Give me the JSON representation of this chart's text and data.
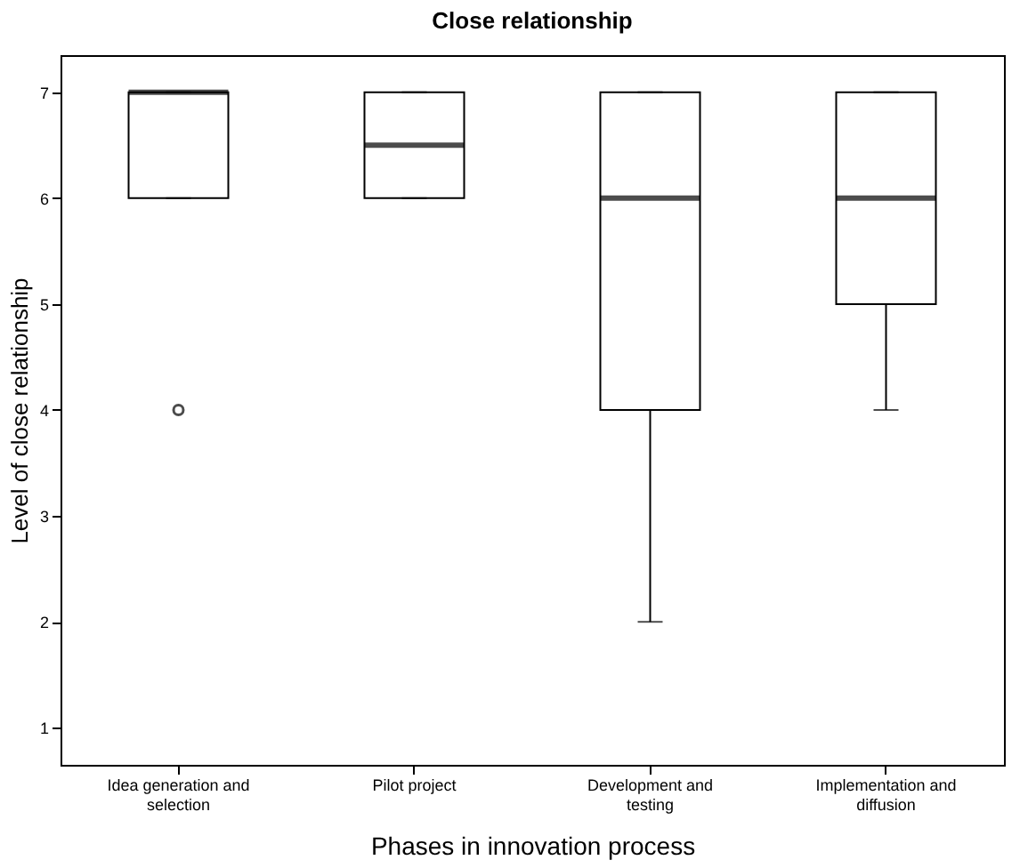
{
  "chart_data": {
    "type": "box",
    "title": "Close relationship",
    "xlabel": "Phases in innovation process",
    "ylabel": "Level of close relationship",
    "categories": [
      "Idea generation and selection",
      "Pilot project",
      "Development and testing",
      "Implementation and diffusion"
    ],
    "boxes": [
      {
        "low": 6,
        "q1": 6,
        "median": 7,
        "q3": 7,
        "high": 7,
        "outliers": [
          4
        ]
      },
      {
        "low": 6,
        "q1": 6,
        "median": 6.5,
        "q3": 7,
        "high": 7
      },
      {
        "low": 2,
        "q1": 4,
        "median": 6,
        "q3": 7,
        "high": 7
      },
      {
        "low": 4,
        "q1": 5,
        "median": 6,
        "q3": 7,
        "high": 7
      }
    ],
    "ylim": [
      0.65,
      7.35
    ],
    "yticks": [
      1,
      2,
      3,
      4,
      5,
      6,
      7
    ],
    "grid": false,
    "color": "#ffffff"
  }
}
